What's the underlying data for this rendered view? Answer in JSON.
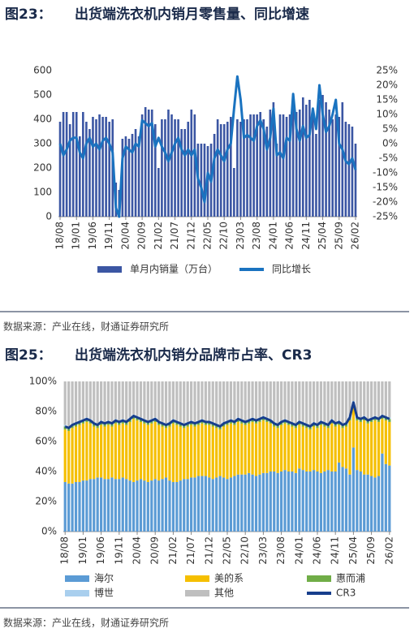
{
  "chart_data": [
    {
      "type": "combo",
      "figure": "图23：",
      "title": "出货端洗衣机内销月零售量、同比增速",
      "source": "数据来源：产业在线，财通证券研究所",
      "categories": [
        "18/08",
        null,
        null,
        null,
        null,
        "19/01",
        null,
        null,
        null,
        null,
        "19/06",
        null,
        null,
        null,
        null,
        "19/11",
        null,
        null,
        null,
        null,
        "20/04",
        null,
        null,
        null,
        null,
        "20/09",
        null,
        null,
        null,
        null,
        "21/02",
        null,
        null,
        null,
        null,
        "21/07",
        null,
        null,
        null,
        null,
        "21/12",
        null,
        null,
        null,
        null,
        "22/05",
        null,
        null,
        null,
        null,
        "22/10",
        null,
        null,
        null,
        null,
        "23/03",
        null,
        null,
        null,
        null,
        "23/08",
        null,
        null,
        null,
        null,
        "24/01",
        null,
        null,
        null,
        null,
        "24/06",
        null,
        null,
        null,
        null,
        "24/11",
        null,
        null,
        null,
        null,
        "25/04",
        null,
        null,
        null,
        null,
        "25/09",
        null,
        null,
        null,
        null,
        "26/02"
      ],
      "series": [
        {
          "name": "单月内销量（万台）",
          "type": "bar",
          "color": "#3b56a3",
          "values": [
            390,
            430,
            430,
            380,
            430,
            430,
            330,
            430,
            390,
            360,
            410,
            400,
            420,
            410,
            410,
            390,
            400,
            140,
            110,
            320,
            330,
            320,
            340,
            360,
            330,
            420,
            450,
            440,
            440,
            380,
            200,
            400,
            400,
            440,
            420,
            400,
            400,
            360,
            360,
            390,
            440,
            420,
            300,
            300,
            300,
            290,
            300,
            340,
            400,
            380,
            380,
            390,
            410,
            200,
            400,
            390,
            400,
            400,
            420,
            420,
            420,
            430,
            400,
            370,
            440,
            470,
            300,
            420,
            420,
            410,
            420,
            450,
            430,
            440,
            490,
            460,
            480,
            420,
            340,
            480,
            500,
            470,
            440,
            400,
            420,
            410,
            470,
            390,
            380,
            370,
            300
          ]
        },
        {
          "name": "同比增长",
          "type": "line",
          "axis": "y2",
          "color": "#1a73c0",
          "values": [
            0,
            -4,
            -2,
            1,
            2,
            2,
            -3,
            -5,
            0,
            2,
            -1,
            0,
            -2,
            1,
            2,
            0,
            -3,
            -22,
            -25,
            -5,
            -1,
            -2,
            -3,
            0,
            -1,
            8,
            7,
            6,
            7,
            -1,
            2,
            -1,
            -3,
            -6,
            -3,
            0,
            2,
            -2,
            -4,
            -2,
            -4,
            -2,
            -12,
            -15,
            -20,
            -10,
            -13,
            -5,
            -2,
            -4,
            -6,
            -2,
            0,
            12,
            23,
            15,
            2,
            3,
            2,
            1,
            6,
            8,
            5,
            -2,
            2,
            12,
            -4,
            -3,
            -5,
            2,
            1,
            17,
            5,
            1,
            6,
            2,
            3,
            12,
            5,
            20,
            10,
            4,
            6,
            10,
            15,
            0,
            -2,
            -6,
            -7,
            -5,
            -9
          ]
        }
      ],
      "ylim": [
        0,
        600
      ],
      "yticks": [
        0,
        100,
        200,
        300,
        400,
        500,
        600
      ],
      "y2lim": [
        -25,
        25
      ],
      "y2ticks": [
        {
          "value": -25,
          "label": "-25%"
        },
        {
          "value": -20,
          "label": "-20%"
        },
        {
          "value": -15,
          "label": "-15%"
        },
        {
          "value": -10,
          "label": "-10%"
        },
        {
          "value": -5,
          "label": "-5%"
        },
        {
          "value": 0,
          "label": "0%"
        },
        {
          "value": 5,
          "label": "5%"
        },
        {
          "value": 10,
          "label": "10%"
        },
        {
          "value": 15,
          "label": "15%"
        },
        {
          "value": 20,
          "label": "20%"
        },
        {
          "value": 25,
          "label": "25%"
        }
      ],
      "grid": false,
      "legend": "bottom"
    },
    {
      "type": "stacked",
      "figure": "图25：",
      "title": "出货端洗衣机内销分品牌市占率、CR3",
      "source": "数据来源：产业在线，财通证券研究所",
      "categories": [
        "18/08",
        null,
        null,
        null,
        null,
        "19/01",
        null,
        null,
        null,
        null,
        "19/06",
        null,
        null,
        null,
        null,
        "19/11",
        null,
        null,
        null,
        null,
        "20/04",
        null,
        null,
        null,
        null,
        "20/09",
        null,
        null,
        null,
        null,
        "21/02",
        null,
        null,
        null,
        null,
        "21/07",
        null,
        null,
        null,
        null,
        "21/12",
        null,
        null,
        null,
        null,
        "22/05",
        null,
        null,
        null,
        null,
        "22/10",
        null,
        null,
        null,
        null,
        "23/03",
        null,
        null,
        null,
        null,
        "23/08",
        null,
        null,
        null,
        null,
        "24/01",
        null,
        null,
        null,
        null,
        "24/06",
        null,
        null,
        null,
        null,
        "24/11",
        null,
        null,
        null,
        null,
        "25/04",
        null,
        null,
        null,
        null,
        "25/09",
        null,
        null,
        null,
        null,
        "26/02"
      ],
      "series": [
        {
          "name": "海尔",
          "type": "bar",
          "color": "#5b9bd5",
          "values": [
            33,
            32,
            32,
            33,
            33,
            34,
            34,
            35,
            35,
            36,
            36,
            35,
            35,
            36,
            35,
            35,
            36,
            35,
            34,
            33,
            34,
            35,
            34,
            33,
            34,
            35,
            34,
            35,
            36,
            34,
            33,
            33,
            34,
            35,
            35,
            36,
            36,
            37,
            37,
            37,
            36,
            35,
            36,
            37,
            36,
            35,
            36,
            37,
            38,
            38,
            38,
            39,
            38,
            37,
            38,
            39,
            39,
            40,
            40,
            39,
            40,
            41,
            40,
            40,
            39,
            42,
            41,
            40,
            40,
            41,
            40,
            39,
            40,
            41,
            40,
            40,
            46,
            43,
            42,
            38,
            56,
            41,
            40,
            38,
            38,
            37,
            36,
            37,
            52,
            45,
            44
          ]
        },
        {
          "name": "美的系",
          "type": "bar",
          "color": "#f5bf00",
          "values": [
            35,
            35,
            37,
            37,
            38,
            38,
            39,
            37,
            35,
            33,
            35,
            35,
            36,
            34,
            37,
            36,
            36,
            36,
            39,
            42,
            40,
            38,
            38,
            38,
            38,
            38,
            37,
            35,
            33,
            36,
            39,
            38,
            36,
            34,
            35,
            35,
            34,
            34,
            35,
            34,
            35,
            35,
            33,
            31,
            34,
            36,
            36,
            34,
            35,
            34,
            33,
            33,
            35,
            35,
            35,
            35,
            34,
            32,
            30,
            30,
            31,
            31,
            31,
            30,
            30,
            29,
            29,
            29,
            28,
            29,
            29,
            32,
            30,
            28,
            32,
            30,
            25,
            26,
            28,
            36,
            28,
            33,
            33,
            36,
            34,
            36,
            38,
            36,
            23,
            29,
            29
          ]
        },
        {
          "name": "惠而浦",
          "type": "bar",
          "color": "#70ad47",
          "values": [
            2,
            2,
            2,
            2,
            2,
            2,
            2,
            2,
            2,
            2,
            2,
            2,
            2,
            2,
            2,
            2,
            2,
            2,
            2,
            2,
            2,
            2,
            2,
            2,
            2,
            2,
            2,
            2,
            2,
            2,
            2,
            2,
            2,
            2,
            2,
            2,
            2,
            2,
            2,
            2,
            2,
            2,
            2,
            2,
            2,
            2,
            2,
            2,
            2,
            2,
            2,
            2,
            2,
            2,
            2,
            2,
            2,
            2,
            2,
            2,
            2,
            2,
            2,
            2,
            2,
            2,
            2,
            2,
            2,
            2,
            2,
            2,
            2,
            2,
            2,
            2,
            2,
            2,
            2,
            2,
            2,
            2,
            2,
            2,
            2,
            2,
            2,
            2,
            2,
            2,
            2
          ]
        },
        {
          "name": "博世",
          "type": "bar",
          "color": "#a9cfee",
          "values": [
            1,
            1,
            1,
            1,
            1,
            1,
            1,
            1,
            1,
            1,
            1,
            1,
            1,
            1,
            1,
            1,
            1,
            1,
            1,
            1,
            1,
            1,
            1,
            1,
            1,
            1,
            1,
            1,
            1,
            1,
            1,
            1,
            1,
            1,
            1,
            1,
            1,
            1,
            1,
            1,
            1,
            1,
            1,
            1,
            1,
            1,
            1,
            1,
            1,
            1,
            1,
            1,
            1,
            1,
            1,
            1,
            1,
            1,
            1,
            1,
            1,
            1,
            1,
            1,
            1,
            1,
            1,
            1,
            1,
            1,
            1,
            1,
            1,
            1,
            1,
            1,
            1,
            1,
            1,
            1,
            1,
            1,
            1,
            1,
            1,
            1,
            1,
            1,
            1,
            1,
            1
          ]
        },
        {
          "name": "其他",
          "type": "bar",
          "color": "#bfbfbf",
          "values": [
            29,
            30,
            28,
            27,
            26,
            25,
            24,
            25,
            27,
            28,
            26,
            27,
            26,
            27,
            25,
            26,
            25,
            26,
            24,
            22,
            23,
            24,
            25,
            26,
            25,
            24,
            26,
            27,
            28,
            27,
            25,
            26,
            27,
            28,
            27,
            26,
            27,
            26,
            25,
            26,
            26,
            27,
            28,
            29,
            27,
            26,
            25,
            26,
            24,
            25,
            26,
            25,
            24,
            25,
            24,
            23,
            24,
            25,
            27,
            28,
            26,
            25,
            26,
            27,
            28,
            26,
            27,
            28,
            29,
            27,
            28,
            26,
            27,
            28,
            25,
            27,
            26,
            28,
            27,
            23,
            13,
            23,
            24,
            23,
            25,
            24,
            23,
            24,
            22,
            23,
            24
          ]
        },
        {
          "name": "CR3",
          "type": "line",
          "color": "#173e8c",
          "values": [
            70,
            69,
            71,
            72,
            73,
            74,
            75,
            74,
            72,
            71,
            73,
            72,
            73,
            72,
            74,
            73,
            74,
            73,
            75,
            77,
            76,
            75,
            74,
            73,
            74,
            75,
            73,
            72,
            71,
            72,
            74,
            73,
            72,
            71,
            72,
            73,
            72,
            73,
            74,
            73,
            73,
            72,
            71,
            70,
            72,
            73,
            74,
            73,
            75,
            74,
            73,
            74,
            75,
            74,
            75,
            76,
            75,
            74,
            72,
            71,
            73,
            74,
            73,
            72,
            71,
            73,
            72,
            71,
            70,
            72,
            71,
            73,
            72,
            71,
            74,
            72,
            73,
            71,
            72,
            76,
            86,
            76,
            75,
            76,
            74,
            75,
            76,
            75,
            77,
            76,
            75
          ]
        }
      ],
      "ylim": [
        0,
        100
      ],
      "yticks": [
        {
          "value": 0,
          "label": "0%"
        },
        {
          "value": 20,
          "label": "20%"
        },
        {
          "value": 40,
          "label": "40%"
        },
        {
          "value": 60,
          "label": "60%"
        },
        {
          "value": 80,
          "label": "80%"
        },
        {
          "value": 100,
          "label": "100%"
        }
      ],
      "grid": false,
      "legend": "bottom"
    }
  ]
}
